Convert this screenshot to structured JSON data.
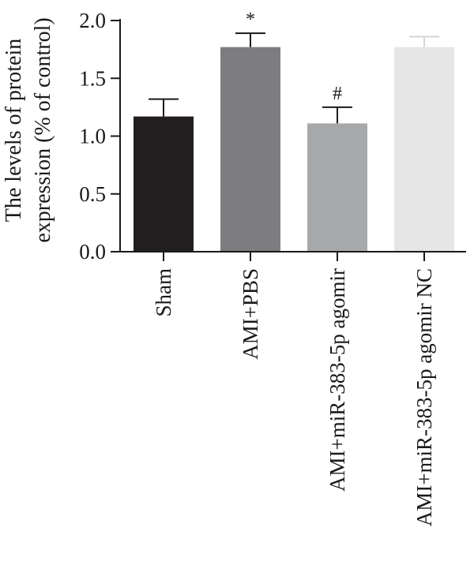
{
  "chart_data": {
    "type": "bar",
    "ylabel_lines": [
      "The levels of protein",
      "expression (% of control)"
    ],
    "categories": [
      "Sham",
      "AMI+PBS",
      "AMI+miR-383-5p agomir",
      "AMI+miR-383-5p agomir NC"
    ],
    "values": [
      1.17,
      1.77,
      1.11,
      1.77
    ],
    "errors": [
      0.15,
      0.12,
      0.14,
      0.09
    ],
    "annotations": [
      "",
      "*",
      "#",
      ""
    ],
    "colors": [
      "#231f20",
      "#7d7d7f",
      "#a7a8aa",
      "#e6e6e7"
    ],
    "ylim": [
      0,
      2.0
    ],
    "yticks": [
      "0.0",
      "0.5",
      "1.0",
      "1.5",
      "2.0"
    ],
    "grid": false
  }
}
